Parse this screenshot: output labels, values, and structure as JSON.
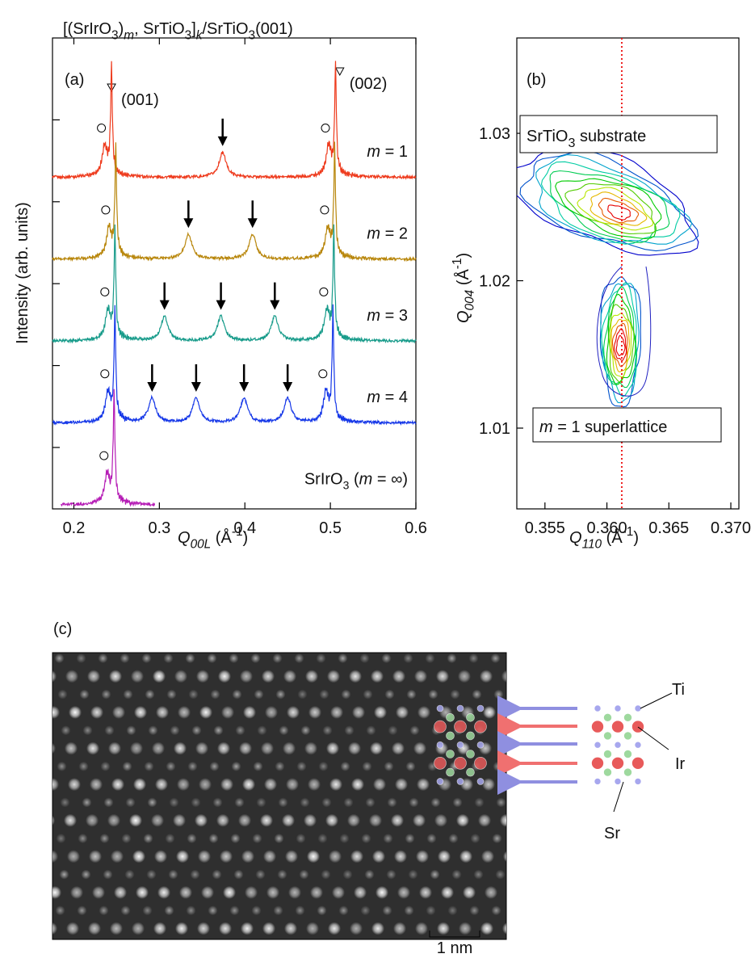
{
  "figure_title": [
    "[(SrIrO",
    "3",
    ")",
    "m",
    ", SrTiO",
    "3",
    "]",
    "k",
    "/SrTiO",
    "3",
    "(001)"
  ],
  "chart_data": [
    {
      "type": "spectra",
      "panel_label": "(a)",
      "xlabel": [
        "Q",
        "00L",
        " (Å",
        "-1",
        ")"
      ],
      "ylabel": "Intensity (arb. units)",
      "xlim": [
        0.175,
        0.6
      ],
      "xticks": [
        0.2,
        0.3,
        0.4,
        0.5,
        0.6
      ],
      "ylim": [
        0.25,
        6
      ],
      "yticks": [
        1,
        2,
        3,
        4,
        5
      ],
      "reflections": [
        {
          "label": "(001)",
          "x": 0.244
        },
        {
          "label": "(002)",
          "x": 0.511
        }
      ],
      "series": [
        {
          "name": [
            "m",
            " = 1"
          ],
          "color": "#ee3a1c",
          "offset": 4.3,
          "xrange": [
            0.175,
            0.6
          ],
          "film_peaks": [
            0.236,
            0.498
          ],
          "peaks": [
            0.374
          ]
        },
        {
          "name": [
            "m",
            " = 2"
          ],
          "color": "#b8860b",
          "offset": 3.3,
          "xrange": [
            0.175,
            0.6
          ],
          "film_peaks": [
            0.241,
            0.497
          ],
          "peaks": [
            0.334,
            0.409
          ]
        },
        {
          "name": [
            "m",
            " = 3"
          ],
          "color": "#179b8a",
          "offset": 2.3,
          "xrange": [
            0.175,
            0.6
          ],
          "film_peaks": [
            0.24,
            0.496
          ],
          "peaks": [
            0.306,
            0.372,
            0.435
          ]
        },
        {
          "name": [
            "m",
            " = 4"
          ],
          "color": "#1537e8",
          "offset": 1.3,
          "xrange": [
            0.175,
            0.6
          ],
          "film_peaks": [
            0.24,
            0.495
          ],
          "peaks": [
            0.2915,
            0.343,
            0.399,
            0.45
          ]
        },
        {
          "name": [
            "SrIrO",
            "3",
            " (",
            "m",
            " = ∞)"
          ],
          "color": "#b51cb5",
          "offset": 0.3,
          "xrange": [
            0.185,
            0.295
          ],
          "film_peaks": [
            0.239
          ],
          "peaks": []
        }
      ]
    },
    {
      "type": "contour",
      "panel_label": "(b)",
      "xlabel": [
        "Q",
        "110",
        " (Å",
        "-1",
        ")"
      ],
      "ylabel": [
        "Q",
        "004",
        " (Å",
        "-1",
        ")"
      ],
      "xlim": [
        0.35273,
        0.37065
      ],
      "xticks": [
        {
          "value": 0.355,
          "label": "0.355"
        },
        {
          "value": 0.36,
          "label": "0.360"
        },
        {
          "value": 0.365,
          "label": "0.365"
        },
        {
          "value": 0.37,
          "label": "0.370"
        }
      ],
      "ylim": [
        1.00452,
        1.03647
      ],
      "yticks": [
        1.01,
        1.02,
        1.03
      ],
      "reference_x": 0.3612,
      "peaks": [
        {
          "label": [
            "SrTiO",
            "3",
            " substrate"
          ],
          "x": 0.3611,
          "y": 1.0249
        },
        {
          "label": [
            "m",
            " = 1 superlattice"
          ],
          "x": 0.3611,
          "y": 1.0155
        }
      ]
    }
  ],
  "panel_c": {
    "label": "(c)",
    "atoms": [
      "Ti",
      "Ir",
      "Sr"
    ],
    "scale_bar": "1 nm"
  }
}
